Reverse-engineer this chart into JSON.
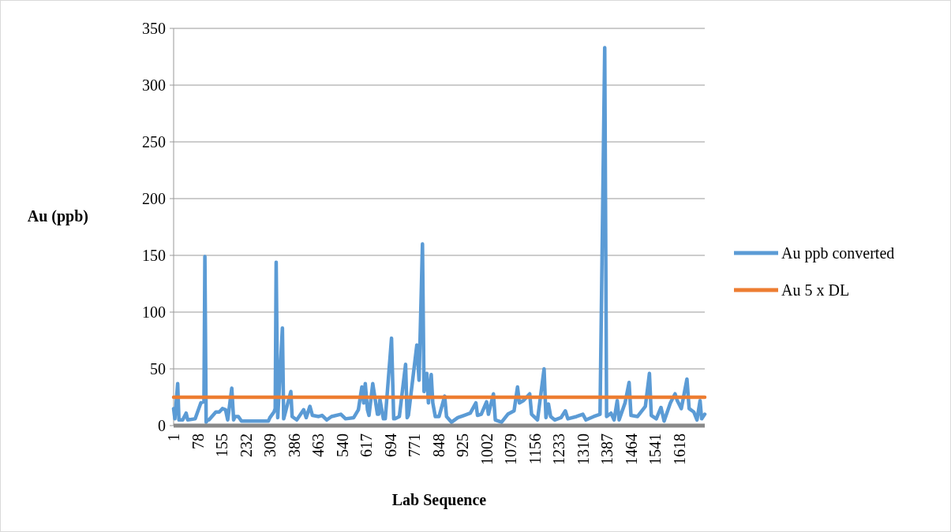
{
  "chart_data": {
    "type": "line",
    "xlabel": "Lab Sequence",
    "ylabel": "Au (ppb)",
    "xlim": [
      1,
      1700
    ],
    "xticks": [
      1,
      78,
      155,
      232,
      309,
      386,
      463,
      540,
      617,
      694,
      771,
      848,
      925,
      1002,
      1079,
      1156,
      1233,
      1310,
      1387,
      1464,
      1541,
      1618
    ],
    "ylim": [
      0,
      350
    ],
    "yticks": [
      0,
      50,
      100,
      150,
      200,
      250,
      300,
      350
    ],
    "grid": "y",
    "legend": "right",
    "line_style": "solid",
    "marker": "none",
    "series": [
      {
        "name": "Au ppb converted",
        "color": "#5b9bd5",
        "x": [
          1,
          5,
          14,
          18,
          30,
          41,
          46,
          70,
          88,
          98,
          101,
          105,
          109,
          114,
          136,
          147,
          157,
          167,
          174,
          187,
          193,
          197,
          208,
          218,
          304,
          309,
          322,
          326,
          329,
          334,
          349,
          353,
          376,
          380,
          395,
          417,
          425,
          437,
          445,
          465,
          476,
          491,
          506,
          536,
          551,
          577,
          592,
          603,
          609,
          614,
          621,
          626,
          638,
          653,
          657,
          661,
          672,
          678,
          698,
          705,
          709,
          723,
          743,
          748,
          752,
          779,
          786,
          797,
          802,
          811,
          816,
          825,
          830,
          838,
          850,
          868,
          874,
          890,
          910,
          930,
          950,
          968,
          973,
          985,
          1002,
          1008,
          1024,
          1030,
          1050,
          1070,
          1090,
          1101,
          1107,
          1120,
          1140,
          1146,
          1165,
          1186,
          1192,
          1200,
          1207,
          1220,
          1240,
          1254,
          1262,
          1290,
          1310,
          1320,
          1345,
          1365,
          1380,
          1386,
          1400,
          1410,
          1420,
          1426,
          1445,
          1458,
          1464,
          1485,
          1510,
          1523,
          1529,
          1545,
          1560,
          1570,
          1590,
          1605,
          1612,
          1625,
          1643,
          1650,
          1665,
          1675,
          1685,
          1690,
          1700
        ],
        "values": [
          15,
          6,
          37,
          5,
          5,
          11,
          5,
          6,
          20,
          21,
          149,
          3,
          5,
          5,
          12,
          12,
          15,
          14,
          5,
          33,
          5,
          8,
          8,
          4,
          4,
          7,
          12,
          15,
          144,
          7,
          86,
          6,
          30,
          8,
          5,
          14,
          7,
          17,
          9,
          8,
          9,
          5,
          8,
          10,
          6,
          7,
          14,
          34,
          20,
          37,
          14,
          9,
          37,
          10,
          10,
          23,
          6,
          6,
          77,
          6,
          6,
          8,
          54,
          7,
          9,
          71,
          40,
          160,
          30,
          46,
          20,
          45,
          20,
          8,
          8,
          26,
          8,
          3,
          7,
          9,
          11,
          20,
          9,
          10,
          21,
          10,
          28,
          5,
          3,
          10,
          13,
          34,
          20,
          22,
          28,
          10,
          5,
          50,
          7,
          19,
          8,
          5,
          7,
          13,
          6,
          8,
          10,
          5,
          8,
          10,
          333,
          8,
          11,
          5,
          22,
          5,
          20,
          38,
          9,
          8,
          17,
          46,
          9,
          6,
          16,
          4,
          20,
          28,
          22,
          15,
          41,
          15,
          12,
          5,
          22,
          6,
          10
        ]
      },
      {
        "name": "Au 5 x DL",
        "color": "#ed7d31",
        "x": [
          1,
          1700
        ],
        "values": [
          25,
          25
        ]
      }
    ]
  }
}
